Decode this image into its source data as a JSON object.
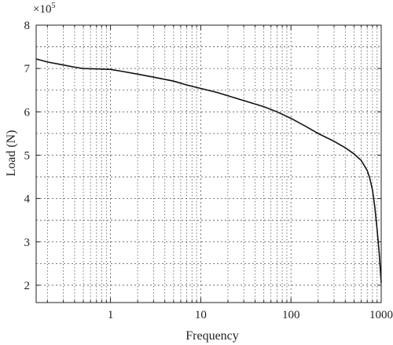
{
  "chart_data": {
    "type": "line",
    "xlabel": "Frequency",
    "ylabel": "Load (N)",
    "x_scale": "log",
    "xlim": [
      0.15,
      1000
    ],
    "ylim": [
      1.6,
      8
    ],
    "y_multiplier": {
      "base": "×10",
      "exponent": "5"
    },
    "x_ticks": [
      {
        "value": 1,
        "label": "1"
      },
      {
        "value": 10,
        "label": "10"
      },
      {
        "value": 100,
        "label": "100"
      },
      {
        "value": 1000,
        "label": "1000"
      }
    ],
    "y_ticks": [
      {
        "value": 2,
        "label": "2"
      },
      {
        "value": 3,
        "label": "3"
      },
      {
        "value": 4,
        "label": "4"
      },
      {
        "value": 5,
        "label": "5"
      },
      {
        "value": 6,
        "label": "6"
      },
      {
        "value": 7,
        "label": "7"
      },
      {
        "value": 8,
        "label": "8"
      }
    ],
    "grid": true,
    "series": [
      {
        "color": "#111111",
        "x": [
          0.15,
          0.2,
          0.3,
          0.4,
          0.5,
          0.7,
          1,
          1.3,
          2,
          3,
          5,
          7,
          10,
          15,
          20,
          30,
          50,
          70,
          100,
          150,
          200,
          300,
          400,
          500,
          600,
          700,
          750,
          800,
          850,
          900,
          950,
          1000
        ],
        "y": [
          7.22,
          7.15,
          7.08,
          7.03,
          7.0,
          6.99,
          6.98,
          6.94,
          6.87,
          6.8,
          6.71,
          6.62,
          6.54,
          6.45,
          6.37,
          6.26,
          6.12,
          6.0,
          5.85,
          5.65,
          5.5,
          5.32,
          5.17,
          5.03,
          4.88,
          4.65,
          4.45,
          4.2,
          3.8,
          3.3,
          2.75,
          2.05
        ]
      }
    ]
  }
}
